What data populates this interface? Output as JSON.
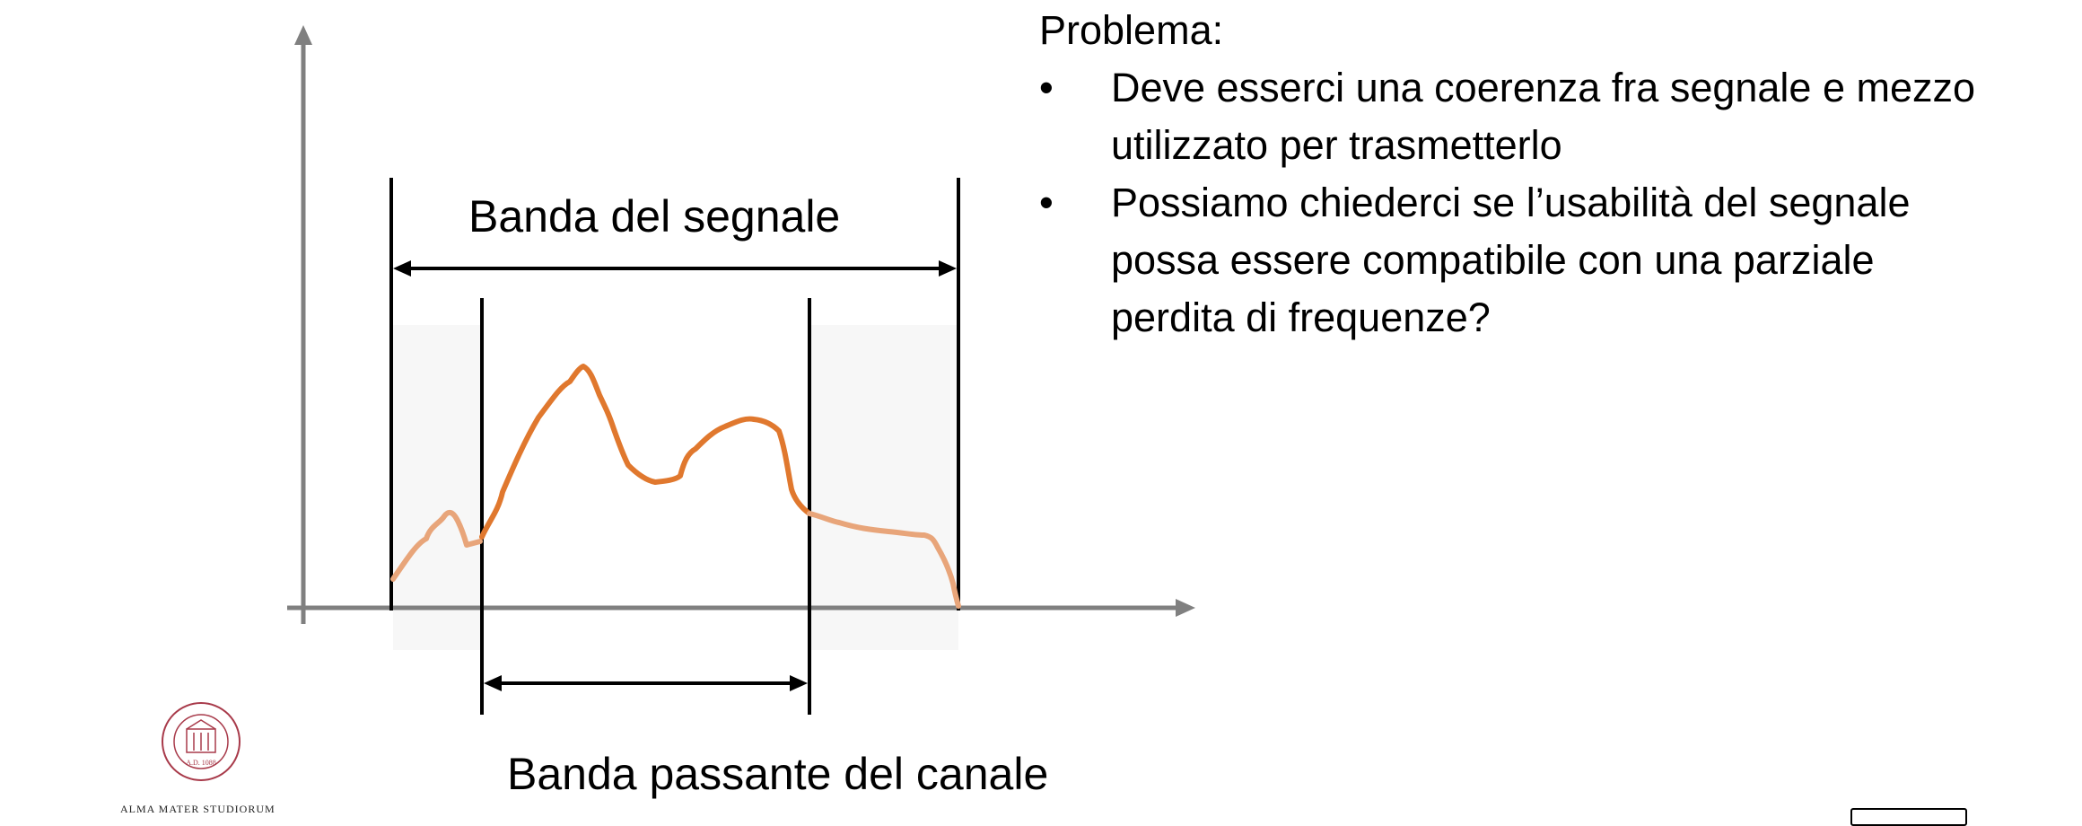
{
  "labels": {
    "signal_band": "Banda del segnale",
    "channel_band": "Banda passante del canale"
  },
  "problem": {
    "title": "Problema:",
    "bullets": [
      {
        "symbol": "•",
        "text": "Deve esserci una coerenza fra segnale e mezzo utilizzato per trasmetterlo"
      },
      {
        "symbol": "•",
        "text": "Possiamo chiederci se l’usabilità del segnale possa essere compatibile con una parziale perdita di frequenze?"
      }
    ]
  },
  "footer": {
    "institution": "ALMA MATER STUDIORUM",
    "seal_text": "A.D. 1088"
  },
  "colors": {
    "axis": "#808080",
    "signal": "#e0782e",
    "signal_faded": "#e8a57a",
    "band_shade": "#f7f7f7",
    "seal": "#a83a4a"
  },
  "icons": {
    "logo": "university-seal-icon"
  }
}
